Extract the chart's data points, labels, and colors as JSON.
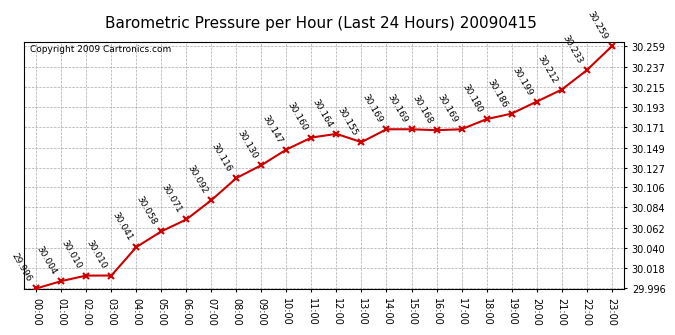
{
  "title": "Barometric Pressure per Hour (Last 24 Hours) 20090415",
  "copyright": "Copyright 2009 Cartronics.com",
  "hours": [
    "00:00",
    "01:00",
    "02:00",
    "03:00",
    "04:00",
    "05:00",
    "06:00",
    "07:00",
    "08:00",
    "09:00",
    "10:00",
    "11:00",
    "12:00",
    "13:00",
    "14:00",
    "15:00",
    "16:00",
    "17:00",
    "18:00",
    "19:00",
    "20:00",
    "21:00",
    "22:00",
    "23:00"
  ],
  "values": [
    29.996,
    30.004,
    30.01,
    30.01,
    30.041,
    30.058,
    30.071,
    30.092,
    30.116,
    30.13,
    30.147,
    30.16,
    30.164,
    30.155,
    30.169,
    30.169,
    30.168,
    30.169,
    30.18,
    30.186,
    30.199,
    30.212,
    30.233,
    30.259
  ],
  "ylim_min": 29.996,
  "ylim_max": 30.259,
  "yticks": [
    29.996,
    30.018,
    30.04,
    30.062,
    30.084,
    30.106,
    30.127,
    30.149,
    30.171,
    30.193,
    30.215,
    30.237,
    30.259
  ],
  "line_color": "#cc0000",
  "marker_color": "#cc0000",
  "bg_color": "#ffffff",
  "grid_color": "#aaaaaa",
  "title_fontsize": 11,
  "label_fontsize": 7,
  "annotation_fontsize": 6.5,
  "copyright_fontsize": 6.5,
  "annotation_rotation": -60
}
